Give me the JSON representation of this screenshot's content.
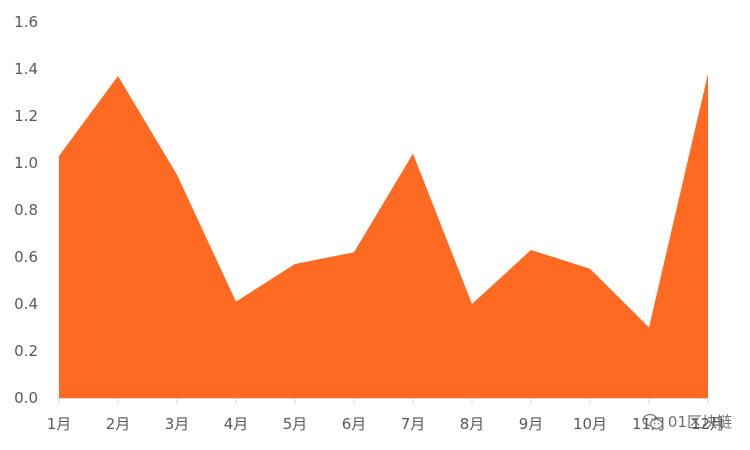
{
  "chart_data": {
    "type": "area",
    "categories": [
      "1月",
      "2月",
      "3月",
      "4月",
      "5月",
      "6月",
      "7月",
      "8月",
      "9月",
      "10月",
      "11月",
      "12月"
    ],
    "values": [
      1.03,
      1.37,
      0.95,
      0.41,
      0.57,
      0.62,
      1.04,
      0.4,
      0.63,
      0.55,
      0.3,
      1.38
    ],
    "y_ticks": [
      "0.0",
      "0.2",
      "0.4",
      "0.6",
      "0.8",
      "1.0",
      "1.2",
      "1.4",
      "1.6"
    ],
    "ylim": [
      0,
      1.6
    ],
    "grid": false,
    "fill_color": "#FF6A22"
  },
  "watermark": {
    "text": "01区块链",
    "icon": "wechat-icon"
  }
}
